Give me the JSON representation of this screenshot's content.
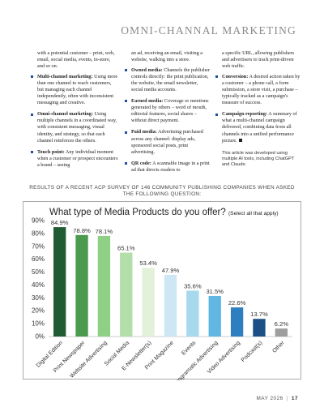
{
  "header": {
    "running_head": "OMNI-CHANNAL MARKETING"
  },
  "column1": {
    "intro": "with a potential customer – print, web, email, social media, events, in-store, and so on.",
    "items": [
      {
        "term": "Multi-channel marketing:",
        "text": " Using more than one channel to reach customers, but managing each channel independently, often with inconsistent messaging and creative."
      },
      {
        "term": "Omni-channel marketing:",
        "text": " Using multiple channels in a coordinated way, with consistent messaging, visual identity, and strategy, so that each channel reinforces the others."
      },
      {
        "term": "Touch point:",
        "text": " Any individual moment when a customer or prospect encounters a brand – seeing"
      }
    ]
  },
  "column2": {
    "intro": "an ad, receiving an email, visiting a website, walking into a store.",
    "items": [
      {
        "term": "Owned media:",
        "text": " Channels the publisher controls directly: the print publication, the website, the email newsletter, social media accounts."
      },
      {
        "term": "Earned media:",
        "text": " Coverage or mentions generated by others – word of mouth, editorial features, social shares – without direct payment."
      },
      {
        "term": "Paid media:",
        "text": " Advertising purchased across any channel: display ads, sponsored social posts, print advertising."
      },
      {
        "term": "QR code:",
        "text": " A scannable image in a print ad that directs readers to"
      }
    ]
  },
  "column3": {
    "intro": "a specific URL, allowing publishers and advertisers to track print-driven web traffic.",
    "items": [
      {
        "term": "Conversion:",
        "text": " A desired action taken by a customer – a phone call, a form submission, a store visit, a purchase – typically tracked as a campaign's measure of success."
      },
      {
        "term": "Campaign reporting:",
        "text": " A summary of what a multi-channel campaign delivered, combining data from all channels into a unified performance picture."
      }
    ],
    "note": "This article was developed using multiple AI tools, including ChatGPT and Claude."
  },
  "survey_caption": "RESULTS OF A RECENT ACP SURVEY OF 146 COMMUNITY PUBLISHING COMPANIES WHEN ASKED THE FOLLOWING QUESTION:",
  "chart_data": {
    "type": "bar",
    "title": "What type of Media Products do you offer?",
    "subtitle": "(Select all that apply)",
    "categories": [
      "Digital Edition",
      "Print Newspaper",
      "Website Advertising",
      "Social Media",
      "E-Newsletter(s)",
      "Print Magazine",
      "Events",
      "Programatic Advertising",
      "Video Advertising",
      "Podcast(s)",
      "Other"
    ],
    "values": [
      84.9,
      78.8,
      78.1,
      65.1,
      53.4,
      47.9,
      35.6,
      31.5,
      22.6,
      13.7,
      6.2
    ],
    "value_labels": [
      "84.9%",
      "78.8%",
      "78.1%",
      "65.1%",
      "53.4%",
      "47.9%",
      "35.6%",
      "31.5%",
      "22.6%",
      "13.7%",
      "6.2%"
    ],
    "bar_colors": [
      "#1f5c33",
      "#4b9a4e",
      "#8fcf86",
      "#b2dea9",
      "#e2f2da",
      "#cde7f4",
      "#a6d8ee",
      "#62b7e2",
      "#2d7fc0",
      "#1c4f86",
      "#9e9e9e"
    ],
    "yticks": [
      "0%",
      "10%",
      "20%",
      "30%",
      "40%",
      "50%",
      "60%",
      "70%",
      "80%",
      "90%"
    ],
    "ylim": [
      0,
      90
    ],
    "grid": false,
    "legend": "none"
  },
  "footer": {
    "issue": "MAY 2026",
    "separator": "|",
    "page": "17"
  }
}
